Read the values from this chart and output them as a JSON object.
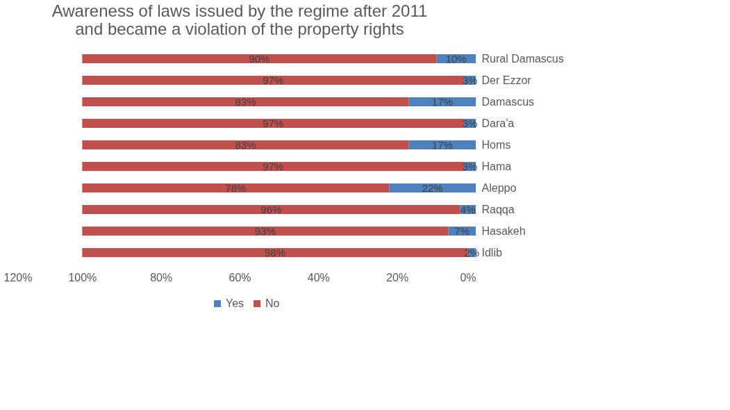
{
  "chart_data": {
    "type": "bar",
    "orientation": "horizontal",
    "stacked": true,
    "title": "Awareness of laws issued by the regime after 2011 and became a violation of the property rights",
    "categories": [
      "Rural Damascus",
      "Der Ezzor",
      "Damascus",
      "Dara'a",
      "Homs",
      "Hama",
      "Aleppo",
      "Raqqa",
      "Hasakeh",
      "Idlib"
    ],
    "series": [
      {
        "name": "Yes",
        "color": "#4f81bd",
        "values": [
          10,
          3,
          17,
          3,
          17,
          3,
          22,
          4,
          7,
          2
        ],
        "value_labels": [
          "10%",
          "3%",
          "17%",
          "3%",
          "17%",
          "3%",
          "22%",
          "4%",
          "7%",
          "2%"
        ]
      },
      {
        "name": "No",
        "color": "#c0504d",
        "values": [
          90,
          97,
          83,
          97,
          83,
          97,
          78,
          96,
          93,
          98
        ],
        "value_labels": [
          "90%",
          "97%",
          "83%",
          "97%",
          "83%",
          "97%",
          "78%",
          "96%",
          "93%",
          "98%"
        ]
      }
    ],
    "xlim": [
      120,
      0
    ],
    "xticks": [
      {
        "value": 120,
        "label": "120%"
      },
      {
        "value": 100,
        "label": "100%"
      },
      {
        "value": 80,
        "label": "80%"
      },
      {
        "value": 60,
        "label": "60%"
      },
      {
        "value": 40,
        "label": "40%"
      },
      {
        "value": 20,
        "label": "20%"
      },
      {
        "value": 0,
        "label": "0%"
      }
    ],
    "grid": false,
    "legend": "bottom"
  }
}
